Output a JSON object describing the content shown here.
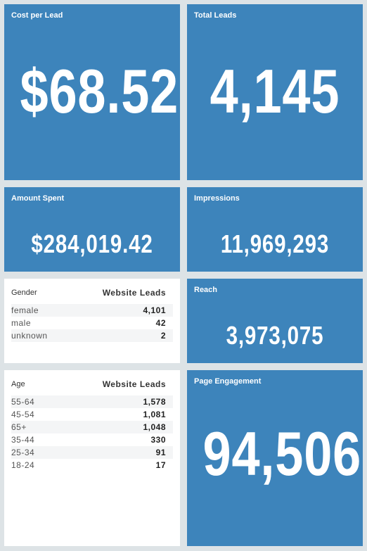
{
  "tiles": [
    {
      "label": "Cost per Lead",
      "value": "$68.52"
    },
    {
      "label": "Total Leads",
      "value": "4,145"
    },
    {
      "label": "Amount Spent",
      "value": "$284,019.42"
    },
    {
      "label": "Impressions",
      "value": "11,969,293"
    },
    {
      "label": "Reach",
      "value": "3,973,075"
    },
    {
      "label": "Page Engagement",
      "value": "94,506"
    }
  ],
  "gender_table": {
    "title": "Gender",
    "column": "Website Leads",
    "rows": [
      [
        "female",
        "4,101"
      ],
      [
        "male",
        "42"
      ],
      [
        "unknown",
        "2"
      ]
    ]
  },
  "age_table": {
    "title": "Age",
    "column": "Website Leads",
    "rows": [
      [
        "55-64",
        "1,578"
      ],
      [
        "45-54",
        "1,081"
      ],
      [
        "65+",
        "1,048"
      ],
      [
        "35-44",
        "330"
      ],
      [
        "25-34",
        "91"
      ],
      [
        "18-24",
        "17"
      ]
    ]
  }
}
